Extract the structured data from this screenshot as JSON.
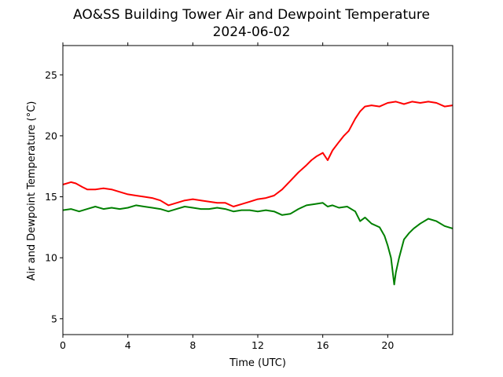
{
  "chart_data": {
    "type": "line",
    "title": "AO&SS Building Tower Air and Dewpoint Temperature",
    "subtitle": "2024-06-02",
    "xlabel": "Time (UTC)",
    "ylabel": "Air and Dewpoint Temperature (°C)",
    "xlim": [
      0,
      24
    ],
    "ylim": [
      3.7,
      27.4
    ],
    "xticks": [
      0,
      4,
      8,
      12,
      16,
      20
    ],
    "yticks": [
      5,
      10,
      15,
      20,
      25
    ],
    "grid": false,
    "legend": "none",
    "series": [
      {
        "color": "#ff0000",
        "x": [
          0,
          0.5,
          0.8,
          1.2,
          1.5,
          2,
          2.5,
          3,
          3.5,
          4,
          4.5,
          5,
          5.5,
          6,
          6.5,
          7,
          7.5,
          8,
          8.5,
          9,
          9.5,
          10,
          10.5,
          11,
          11.5,
          12,
          12.5,
          13,
          13.5,
          14,
          14.5,
          15,
          15.3,
          15.6,
          16,
          16.3,
          16.6,
          17,
          17.3,
          17.6,
          18,
          18.3,
          18.6,
          19,
          19.5,
          20,
          20.5,
          21,
          21.5,
          22,
          22.5,
          23,
          23.5,
          24
        ],
        "y": [
          16.0,
          16.2,
          16.1,
          15.8,
          15.6,
          15.6,
          15.7,
          15.6,
          15.4,
          15.2,
          15.1,
          15.0,
          14.9,
          14.7,
          14.3,
          14.5,
          14.7,
          14.8,
          14.7,
          14.6,
          14.5,
          14.5,
          14.2,
          14.4,
          14.6,
          14.8,
          14.9,
          15.1,
          15.6,
          16.3,
          17.0,
          17.6,
          18.0,
          18.3,
          18.6,
          18.0,
          18.8,
          19.5,
          20.0,
          20.4,
          21.4,
          22.0,
          22.4,
          22.5,
          22.4,
          22.7,
          22.8,
          22.6,
          22.8,
          22.7,
          22.8,
          22.7,
          22.4,
          22.5
        ]
      },
      {
        "color": "#008000",
        "x": [
          0,
          0.5,
          1,
          1.5,
          2,
          2.5,
          3,
          3.5,
          4,
          4.5,
          5,
          5.5,
          6,
          6.5,
          7,
          7.5,
          8,
          8.5,
          9,
          9.5,
          10,
          10.5,
          11,
          11.5,
          12,
          12.5,
          13,
          13.5,
          14,
          14.5,
          15,
          15.5,
          16,
          16.3,
          16.6,
          17,
          17.5,
          18,
          18.3,
          18.6,
          19,
          19.5,
          19.8,
          20.0,
          20.2,
          20.4,
          20.5,
          20.7,
          21.0,
          21.3,
          21.6,
          22.0,
          22.5,
          23,
          23.5,
          24
        ],
        "y": [
          13.9,
          14.0,
          13.8,
          14.0,
          14.2,
          14.0,
          14.1,
          14.0,
          14.1,
          14.3,
          14.2,
          14.1,
          14.0,
          13.8,
          14.0,
          14.2,
          14.1,
          14.0,
          14.0,
          14.1,
          14.0,
          13.8,
          13.9,
          13.9,
          13.8,
          13.9,
          13.8,
          13.5,
          13.6,
          14.0,
          14.3,
          14.4,
          14.5,
          14.2,
          14.3,
          14.1,
          14.2,
          13.8,
          13.0,
          13.3,
          12.8,
          12.5,
          11.8,
          11.0,
          10.0,
          7.8,
          8.8,
          10.0,
          11.5,
          12.0,
          12.4,
          12.8,
          13.2,
          13.0,
          12.6,
          12.4
        ]
      }
    ]
  }
}
